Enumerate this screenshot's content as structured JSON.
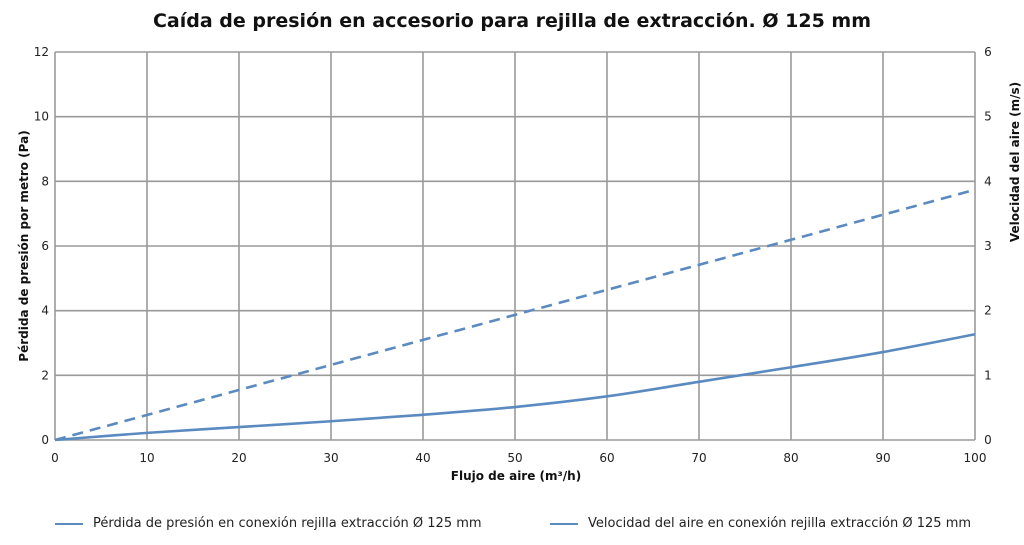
{
  "chart_data": {
    "type": "line",
    "title": "Caída de presión en accesorio para rejilla de extracción. Ø 125 mm",
    "xlabel": "Flujo de aire (m³/h)",
    "ylabel_left": "Pérdida de presión por metro (Pa)",
    "ylabel_right": "Velocidad del aire (m/s)",
    "xlim": [
      0,
      100
    ],
    "ylim_left": [
      0,
      12
    ],
    "ylim_right": [
      0,
      6
    ],
    "x_ticks": [
      "0",
      "10",
      "20",
      "30",
      "40",
      "50",
      "60",
      "70",
      "80",
      "90",
      "100"
    ],
    "y_ticks_left": [
      "0",
      "2",
      "4",
      "6",
      "8",
      "10",
      "12"
    ],
    "y_ticks_right": [
      "0",
      "1",
      "2",
      "3",
      "4",
      "5",
      "6"
    ],
    "grid": true,
    "legend_position": "bottom",
    "series": [
      {
        "name": "Pérdida de presión en conexión rejilla extracción Ø 125 mm",
        "axis": "left",
        "style": "solid",
        "color": "#5b8ac1",
        "x": [
          0,
          10,
          20,
          30,
          40,
          50,
          60,
          70,
          80,
          90,
          100
        ],
        "values": [
          0,
          0.22,
          0.4,
          0.58,
          0.78,
          1.02,
          1.35,
          1.8,
          2.25,
          2.72,
          3.27
        ]
      },
      {
        "name": "Velocidad del aire en conexión rejilla extracción Ø 125 mm",
        "axis": "right",
        "style": "dashed",
        "color": "#5b8ac1",
        "x": [
          0,
          100
        ],
        "values": [
          0,
          3.87
        ]
      }
    ]
  }
}
